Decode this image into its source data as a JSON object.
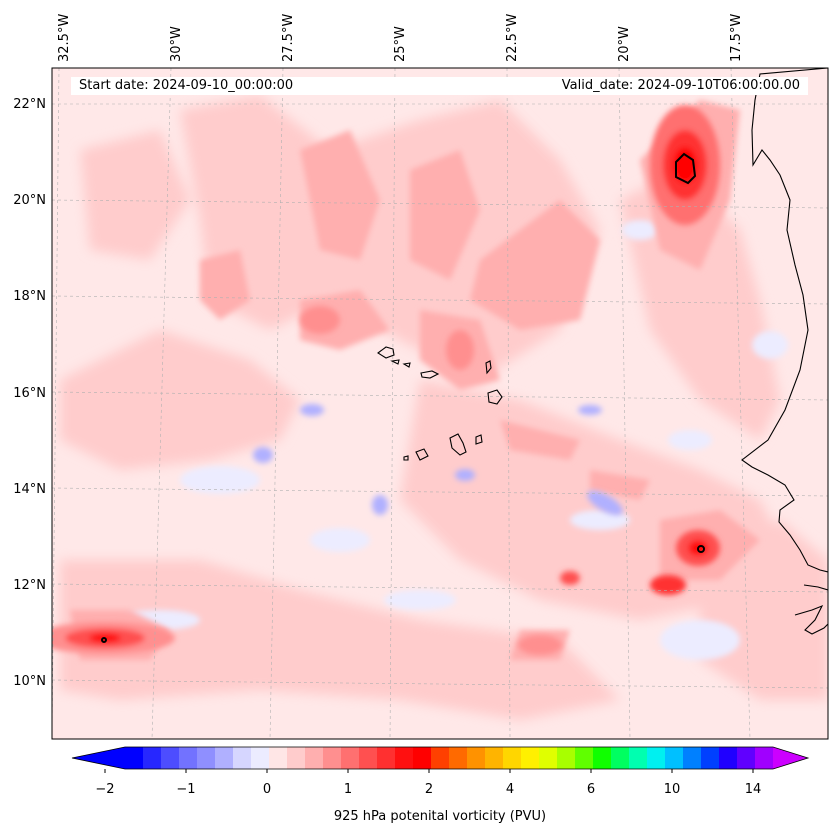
{
  "header": {
    "start_date": "Start date: 2024-09-10_00:00:00",
    "valid_date": "Valid_date: 2024-09-10T06:00:00.00"
  },
  "axes": {
    "lon_labels": [
      "32.5°W",
      "30°W",
      "27.5°W",
      "25°W",
      "22.5°W",
      "20°W",
      "17.5°W"
    ],
    "lat_labels": [
      "22°N",
      "20°N",
      "18°N",
      "16°N",
      "14°N",
      "12°N",
      "10°N"
    ]
  },
  "colorbar": {
    "title": "925 hPa potenital vorticity (PVU)",
    "tick_labels": [
      "−2",
      "−1",
      "0",
      "1",
      "2",
      "4",
      "6",
      "10",
      "14"
    ],
    "colors": [
      "#0000ff",
      "#2727ff",
      "#4d4dff",
      "#7272ff",
      "#8f8fff",
      "#b0b0ff",
      "#d6d6ff",
      "#ececff",
      "#ffe6e6",
      "#ffcccc",
      "#ffafaf",
      "#ff8f8f",
      "#ff7070",
      "#ff5050",
      "#ff3030",
      "#ff1010",
      "#ff0000",
      "#ff4000",
      "#ff6a00",
      "#ff9200",
      "#ffb400",
      "#ffd600",
      "#fff000",
      "#e0ff00",
      "#a8ff00",
      "#60ff00",
      "#10ff00",
      "#00ff60",
      "#00ffb0",
      "#00f0f0",
      "#00c0ff",
      "#0080ff",
      "#0040ff",
      "#2000ff",
      "#6000ff",
      "#a000ff"
    ],
    "under_color": "#0000ff",
    "over_color": "#cc00ff"
  },
  "map": {
    "background_color": "#ffe8e8",
    "coast_color": "#000000"
  }
}
